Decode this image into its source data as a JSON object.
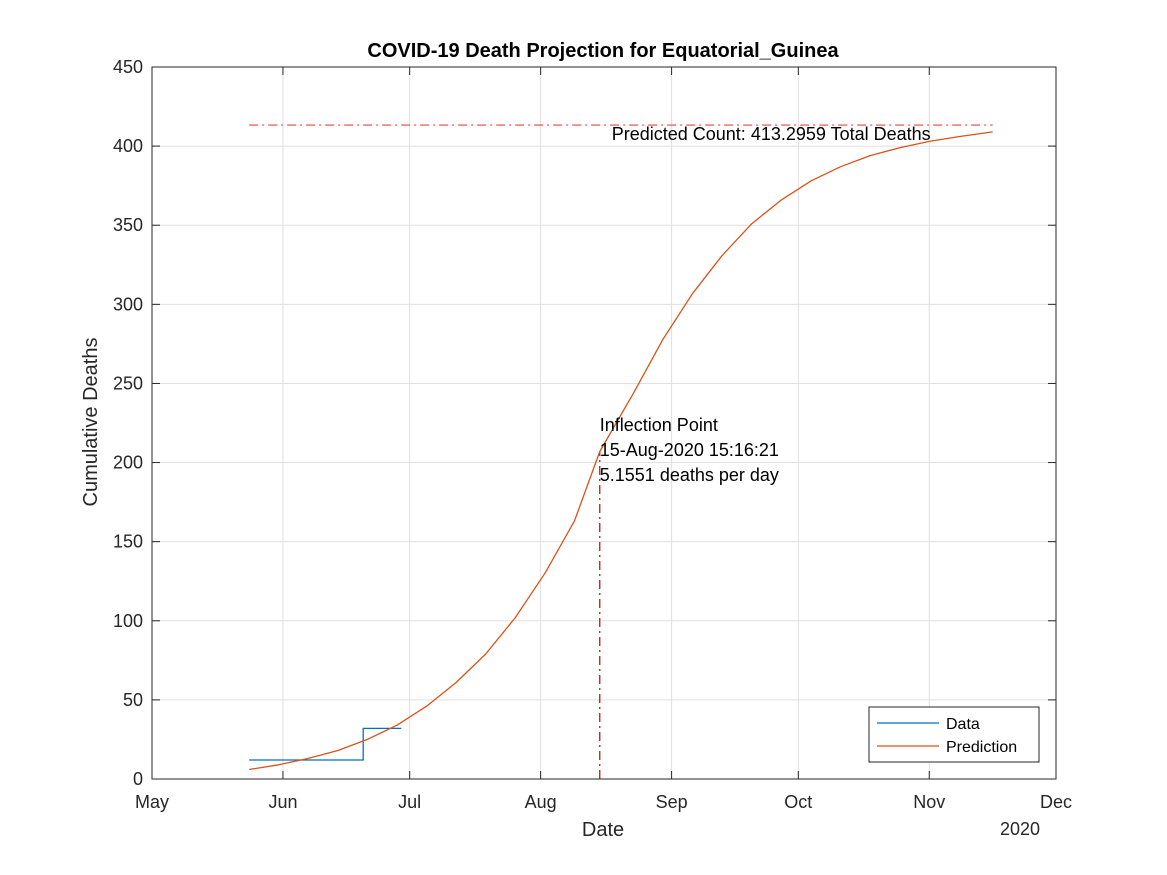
{
  "chart_data": {
    "type": "line",
    "title": "COVID-19 Death Projection for Equatorial_Guinea",
    "xlabel": "Date",
    "ylabel": "Cumulative Deaths",
    "x_year_label": "2020",
    "xlim": [
      "2020-05-01",
      "2020-12-01"
    ],
    "ylim": [
      0,
      450
    ],
    "x_ticks": [
      {
        "date": "2020-05-01",
        "label": "May"
      },
      {
        "date": "2020-06-01",
        "label": "Jun"
      },
      {
        "date": "2020-07-01",
        "label": "Jul"
      },
      {
        "date": "2020-08-01",
        "label": "Aug"
      },
      {
        "date": "2020-09-01",
        "label": "Sep"
      },
      {
        "date": "2020-10-01",
        "label": "Oct"
      },
      {
        "date": "2020-11-01",
        "label": "Nov"
      },
      {
        "date": "2020-12-01",
        "label": "Dec"
      }
    ],
    "y_ticks": [
      0,
      50,
      100,
      150,
      200,
      250,
      300,
      350,
      400,
      450
    ],
    "grid": true,
    "legend_position": "bottom-right",
    "series": [
      {
        "name": "Data",
        "color": "#0072BD",
        "step": true,
        "points": [
          {
            "x": "2020-05-24",
            "y": 12
          },
          {
            "x": "2020-06-20",
            "y": 12
          },
          {
            "x": "2020-06-20",
            "y": 32
          },
          {
            "x": "2020-06-29",
            "y": 32
          }
        ]
      },
      {
        "name": "Prediction",
        "color": "#D95319",
        "points": [
          {
            "x": "2020-05-24",
            "y": 6
          },
          {
            "x": "2020-05-31",
            "y": 9
          },
          {
            "x": "2020-06-07",
            "y": 13
          },
          {
            "x": "2020-06-14",
            "y": 18
          },
          {
            "x": "2020-06-21",
            "y": 25
          },
          {
            "x": "2020-06-28",
            "y": 34
          },
          {
            "x": "2020-07-05",
            "y": 46
          },
          {
            "x": "2020-07-12",
            "y": 61
          },
          {
            "x": "2020-07-19",
            "y": 79
          },
          {
            "x": "2020-07-26",
            "y": 102
          },
          {
            "x": "2020-08-02",
            "y": 130
          },
          {
            "x": "2020-08-09",
            "y": 163
          },
          {
            "x": "2020-08-15",
            "y": 207
          },
          {
            "x": "2020-08-23",
            "y": 244
          },
          {
            "x": "2020-08-30",
            "y": 278
          },
          {
            "x": "2020-09-06",
            "y": 307
          },
          {
            "x": "2020-09-13",
            "y": 331
          },
          {
            "x": "2020-09-20",
            "y": 351
          },
          {
            "x": "2020-09-27",
            "y": 366
          },
          {
            "x": "2020-10-04",
            "y": 378
          },
          {
            "x": "2020-10-11",
            "y": 387
          },
          {
            "x": "2020-10-18",
            "y": 394
          },
          {
            "x": "2020-10-25",
            "y": 399
          },
          {
            "x": "2020-11-01",
            "y": 403
          },
          {
            "x": "2020-11-08",
            "y": 406
          },
          {
            "x": "2020-11-16",
            "y": 409
          }
        ]
      }
    ],
    "reference_lines": [
      {
        "orientation": "horizontal",
        "y": 413.2959,
        "x_start": "2020-05-24",
        "x_end": "2020-11-16",
        "color": "#E8443A",
        "style": "dash-dot"
      },
      {
        "orientation": "vertical",
        "x": "2020-08-15",
        "y_start": 0,
        "y_end": 207,
        "color": "#C00000",
        "style": "dash-dot"
      }
    ],
    "annotations": [
      {
        "anchor": {
          "x": "2020-11-16",
          "y": 404
        },
        "align": "end",
        "lines": [
          "Predicted Count: 413.2959 Total Deaths"
        ]
      },
      {
        "anchor": {
          "x": "2020-08-15",
          "y": 220
        },
        "align": "start",
        "lines": [
          "Inflection Point",
          "15-Aug-2020 15:16:21",
          "5.1551 deaths per day"
        ]
      }
    ]
  }
}
